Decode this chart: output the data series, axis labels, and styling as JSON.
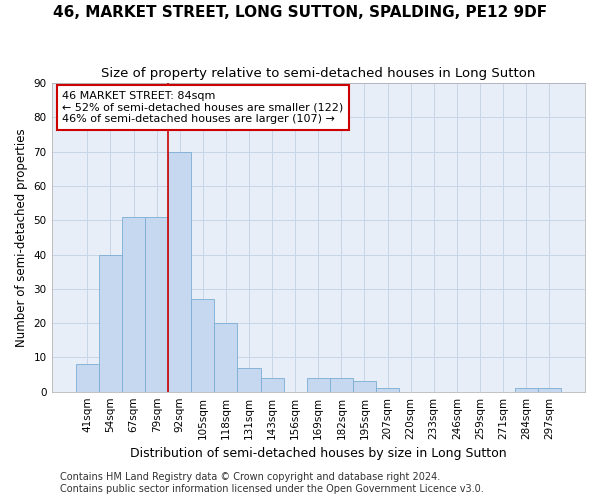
{
  "title": "46, MARKET STREET, LONG SUTTON, SPALDING, PE12 9DF",
  "subtitle": "Size of property relative to semi-detached houses in Long Sutton",
  "xlabel": "Distribution of semi-detached houses by size in Long Sutton",
  "ylabel": "Number of semi-detached properties",
  "categories": [
    "41sqm",
    "54sqm",
    "67sqm",
    "79sqm",
    "92sqm",
    "105sqm",
    "118sqm",
    "131sqm",
    "143sqm",
    "156sqm",
    "169sqm",
    "182sqm",
    "195sqm",
    "207sqm",
    "220sqm",
    "233sqm",
    "246sqm",
    "259sqm",
    "271sqm",
    "284sqm",
    "297sqm"
  ],
  "values": [
    8,
    40,
    51,
    51,
    70,
    27,
    20,
    7,
    4,
    0,
    4,
    4,
    3,
    1,
    0,
    0,
    0,
    0,
    0,
    1,
    1
  ],
  "bar_color": "#c5d8f0",
  "bar_edge_color": "#7aadd4",
  "vline_bin_index": 4,
  "annotation_text": "46 MARKET STREET: 84sqm\n← 52% of semi-detached houses are smaller (122)\n46% of semi-detached houses are larger (107) →",
  "annotation_box_color": "#ffffff",
  "annotation_box_edge": "#cc0000",
  "vline_color": "#cc0000",
  "grid_color": "#c8d4e8",
  "bg_color": "#e8eef8",
  "footer_text": "Contains HM Land Registry data © Crown copyright and database right 2024.\nContains public sector information licensed under the Open Government Licence v3.0.",
  "ylim": [
    0,
    90
  ],
  "yticks": [
    0,
    10,
    20,
    30,
    40,
    50,
    60,
    70,
    80,
    90
  ],
  "title_fontsize": 11,
  "subtitle_fontsize": 9.5,
  "xlabel_fontsize": 9,
  "ylabel_fontsize": 8.5,
  "tick_fontsize": 7.5,
  "annotation_fontsize": 8,
  "footer_fontsize": 7
}
